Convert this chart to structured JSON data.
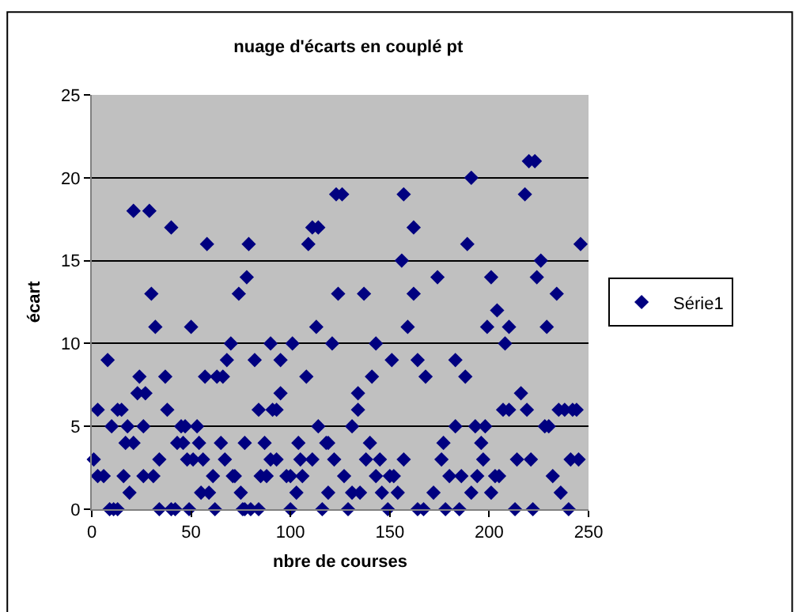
{
  "chart_data": {
    "type": "scatter",
    "title": "nuage d'écarts en couplé pt",
    "xlabel": "nbre de courses",
    "ylabel": "écart",
    "x": [
      1,
      3,
      3,
      6,
      8,
      9,
      10,
      13,
      11,
      13,
      15,
      17,
      16,
      19,
      18,
      21,
      21,
      24,
      23,
      26,
      27,
      26,
      29,
      30,
      31,
      32,
      34,
      34,
      37,
      38,
      40,
      40,
      42,
      43,
      45,
      46,
      47,
      48,
      49,
      50,
      51,
      53,
      54,
      56,
      55,
      59,
      58,
      57,
      61,
      62,
      63,
      66,
      68,
      70,
      65,
      67,
      71,
      72,
      75,
      77,
      77,
      74,
      78,
      79,
      76,
      80,
      82,
      84,
      84,
      85,
      87,
      88,
      90,
      90,
      91,
      93,
      95,
      95,
      93,
      98,
      100,
      100,
      101,
      103,
      104,
      105,
      106,
      108,
      109,
      111,
      111,
      113,
      114,
      114,
      116,
      118,
      119,
      119,
      121,
      122,
      123,
      124,
      126,
      127,
      129,
      131,
      131,
      134,
      134,
      135,
      137,
      138,
      140,
      141,
      143,
      143,
      145,
      146,
      149,
      150,
      151,
      152,
      156,
      157,
      157,
      159,
      162,
      162,
      164,
      154,
      164,
      167,
      168,
      172,
      174,
      176,
      177,
      178,
      180,
      183,
      183,
      185,
      186,
      188,
      189,
      191,
      191,
      193,
      194,
      196,
      197,
      198,
      199,
      201,
      201,
      203,
      204,
      205,
      207,
      208,
      210,
      210,
      213,
      214,
      216,
      218,
      219,
      220,
      221,
      222,
      223,
      224,
      226,
      228,
      229,
      230,
      232,
      234,
      235,
      236,
      238,
      240,
      241,
      242,
      244,
      246,
      245
    ],
    "series": [
      {
        "name": "Série1",
        "color": "#000080",
        "values": [
          3,
          6,
          2,
          2,
          9,
          0,
          5,
          6,
          0,
          0,
          6,
          4,
          2,
          1,
          5,
          18,
          4,
          8,
          7,
          5,
          7,
          2,
          18,
          13,
          2,
          11,
          3,
          0,
          8,
          6,
          17,
          0,
          0,
          4,
          5,
          4,
          5,
          3,
          0,
          11,
          3,
          5,
          4,
          3,
          1,
          1,
          16,
          8,
          2,
          0,
          8,
          8,
          9,
          10,
          4,
          3,
          2,
          2,
          1,
          0,
          4,
          13,
          14,
          16,
          0,
          0,
          9,
          6,
          0,
          2,
          4,
          2,
          3,
          10,
          6,
          6,
          9,
          7,
          3,
          2,
          0,
          2,
          10,
          1,
          4,
          3,
          2,
          8,
          16,
          17,
          3,
          11,
          5,
          17,
          0,
          4,
          1,
          4,
          10,
          3,
          19,
          13,
          19,
          2,
          0,
          5,
          1,
          6,
          7,
          1,
          13,
          3,
          4,
          8,
          10,
          2,
          3,
          1,
          0,
          2,
          9,
          2,
          15,
          3,
          19,
          11,
          17,
          13,
          9,
          1,
          0,
          0,
          8,
          1,
          14,
          3,
          4,
          0,
          2,
          9,
          5,
          0,
          2,
          8,
          16,
          1,
          20,
          5,
          2,
          4,
          3,
          5,
          11,
          1,
          14,
          2,
          12,
          2,
          6,
          10,
          11,
          6,
          0,
          3,
          7,
          19,
          6,
          21,
          3,
          0,
          21,
          14,
          15,
          5,
          11,
          5,
          2,
          13,
          6,
          1,
          6,
          0,
          3,
          6,
          6,
          16,
          3
        ]
      }
    ],
    "marker": "diamond",
    "legend": "right",
    "xlim": [
      0,
      250
    ],
    "xticks": [
      0,
      50,
      100,
      150,
      200,
      250
    ],
    "ylim": [
      0,
      25
    ],
    "yticks": [
      0,
      5,
      10,
      15,
      20,
      25
    ],
    "grid": "y"
  }
}
